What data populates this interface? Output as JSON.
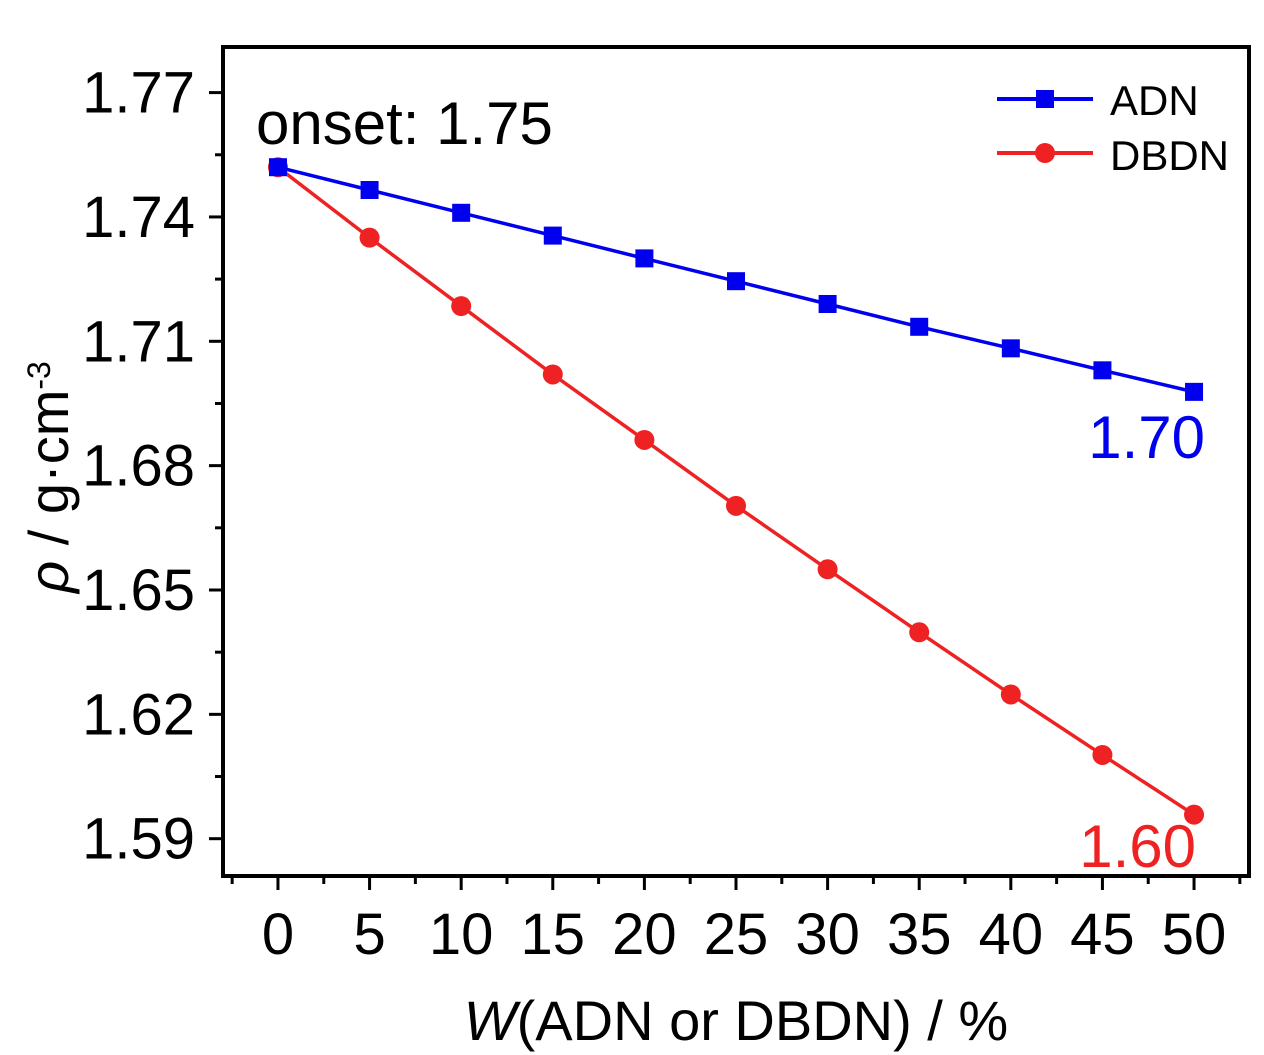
{
  "chart_data": {
    "type": "line",
    "xlabel": {
      "symbol": "W",
      "rest": "(ADN or DBDN) / %"
    },
    "ylabel": {
      "symbol": "ρ",
      "rest": " / g·cm",
      "sup": "-3"
    },
    "x": [
      0,
      5,
      10,
      15,
      20,
      25,
      30,
      35,
      40,
      45,
      50
    ],
    "xlim": [
      -3,
      53
    ],
    "ylim": [
      1.581,
      1.781
    ],
    "xticks": [
      0,
      5,
      10,
      15,
      20,
      25,
      30,
      35,
      40,
      45,
      50
    ],
    "xtick_labels": [
      "0",
      "5",
      "10",
      "15",
      "20",
      "25",
      "30",
      "35",
      "40",
      "45",
      "50"
    ],
    "yticks": [
      1.59,
      1.62,
      1.65,
      1.68,
      1.71,
      1.74,
      1.77
    ],
    "ytick_labels": [
      "1.59",
      "1.62",
      "1.65",
      "1.68",
      "1.71",
      "1.74",
      "1.77"
    ],
    "grid": false,
    "legend": "top-right",
    "series": [
      {
        "name": "ADN",
        "color": "#0000ee",
        "marker": "square",
        "values": [
          1.752,
          1.7465,
          1.741,
          1.7355,
          1.73,
          1.7245,
          1.719,
          1.7135,
          1.7083,
          1.703,
          1.6978
        ]
      },
      {
        "name": "DBDN",
        "color": "#ee2222",
        "marker": "circle",
        "values": [
          1.752,
          1.735,
          1.7185,
          1.702,
          1.6862,
          1.6703,
          1.655,
          1.6398,
          1.6248,
          1.6102,
          1.5958
        ]
      }
    ],
    "annotations": [
      {
        "text": "onset: 1.75",
        "color": "#000000",
        "anchor": "top-left"
      },
      {
        "text": "1.70",
        "color": "#0000ee",
        "anchor": "ADN-end"
      },
      {
        "text": "1.60",
        "color": "#ee2222",
        "anchor": "DBDN-end"
      }
    ]
  }
}
